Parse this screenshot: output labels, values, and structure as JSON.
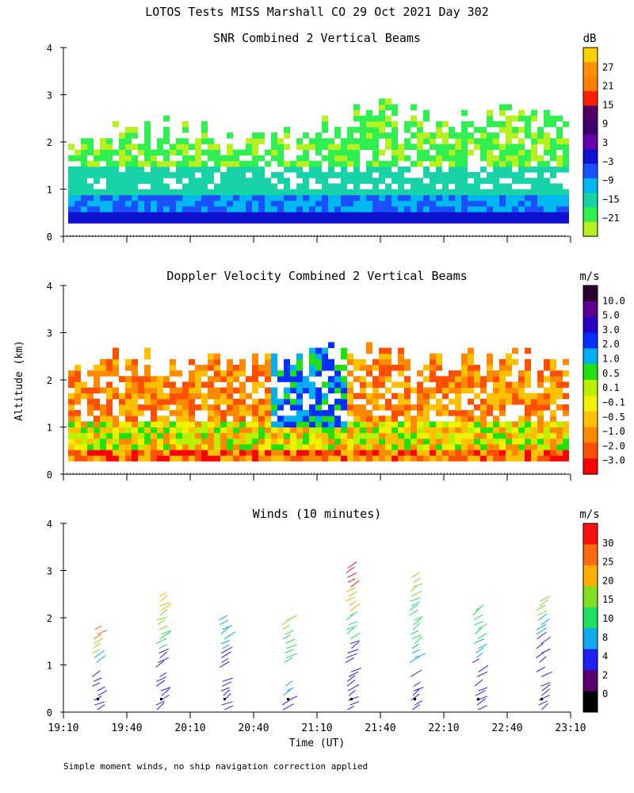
{
  "figure": {
    "title": "LOTOS Tests MISS Marshall CO  29 Oct 2021 Day 302",
    "ylabel": "Altitude (km)",
    "xlabel": "Time (UT)",
    "footnote": "Simple moment winds, no ship navigation correction applied",
    "time_ticks": [
      "19:10",
      "19:40",
      "20:10",
      "20:40",
      "21:10",
      "21:40",
      "22:10",
      "22:40",
      "23:10"
    ]
  },
  "chart_data": [
    {
      "type": "heatmap",
      "title": "SNR Combined 2 Vertical Beams",
      "ylim": [
        0,
        4
      ],
      "y_ticks": [
        "0",
        "1",
        "2",
        "3",
        "4"
      ],
      "colorbar": {
        "unit": "dB",
        "labels": [
          "27",
          "21",
          "15",
          "9",
          "3",
          "−3",
          "−9",
          "−15",
          "−21"
        ],
        "colors": [
          "#ffd000",
          "#ff9000",
          "#ff8000",
          "#ff2000",
          "#550066",
          "#3a0070",
          "#6600aa",
          "#1010d0",
          "#1a50ff",
          "#00b7f0",
          "#18d2a8",
          "#30ef50",
          "#b6f020"
        ]
      },
      "profile": [
        {
          "alt_km": 0.3,
          "db": -3
        },
        {
          "alt_km": 0.5,
          "db": -3
        },
        {
          "alt_km": 0.8,
          "db": -9
        },
        {
          "alt_km": 1.2,
          "db": -12
        },
        {
          "alt_km": 1.8,
          "db": -15
        },
        {
          "alt_km": 2.4,
          "db": -21
        }
      ],
      "echo_top_km": [
        2.2,
        2.5,
        2.5,
        2.4,
        2.3,
        2.2,
        2.3,
        2.5,
        2.9,
        2.8,
        2.6,
        2.7,
        2.8,
        2.8
      ]
    },
    {
      "type": "heatmap",
      "title": "Doppler Velocity Combined 2 Vertical Beams",
      "ylim": [
        0,
        4
      ],
      "y_ticks": [
        "0",
        "1",
        "2",
        "3",
        "4"
      ],
      "colorbar": {
        "unit": "m/s",
        "labels": [
          "10.0",
          "5.0",
          "3.0",
          "2.0",
          "1.0",
          "0.5",
          "0.1",
          "−0.1",
          "−0.5",
          "−1.0",
          "−2.0",
          "−3.0"
        ],
        "colors": [
          "#2a0030",
          "#5a0090",
          "#2a00c8",
          "#0030ff",
          "#00b0f0",
          "#20e010",
          "#b8f000",
          "#f0f000",
          "#ffc000",
          "#ff8a00",
          "#ff5000",
          "#ff0000"
        ]
      },
      "profile": [
        {
          "alt_km": 0.3,
          "ms": -0.5
        },
        {
          "alt_km": 0.8,
          "ms": 0.1
        },
        {
          "alt_km": 1.5,
          "ms": -1.0
        },
        {
          "alt_km": 2.1,
          "ms": -2.0
        }
      ]
    },
    {
      "type": "scatter",
      "title": "Winds (10 minutes)",
      "ylim": [
        0,
        4
      ],
      "y_ticks": [
        "0",
        "1",
        "2",
        "3",
        "4"
      ],
      "colorbar": {
        "unit": "m/s",
        "labels": [
          "30",
          "25",
          "20",
          "15",
          "10",
          "8",
          "4",
          "2",
          "0"
        ],
        "colors": [
          "#ff1010",
          "#ff6a10",
          "#ffb000",
          "#80e020",
          "#20e060",
          "#10a8f0",
          "#2020f0",
          "#5a0070",
          "#000000"
        ]
      },
      "profiles": [
        {
          "time": "19:25",
          "top_km": 1.8,
          "speed_ms": [
            25,
            18,
            8,
            6,
            6,
            4
          ]
        },
        {
          "time": "19:55",
          "top_km": 2.55,
          "speed_ms": [
            20,
            16,
            10,
            6,
            6,
            4
          ]
        },
        {
          "time": "20:25",
          "top_km": 2.0,
          "speed_ms": [
            8,
            8,
            6,
            6,
            4,
            4
          ]
        },
        {
          "time": "20:55",
          "top_km": 2.0,
          "speed_ms": [
            16,
            14,
            12,
            10,
            8,
            6
          ]
        },
        {
          "time": "21:25",
          "top_km": 3.1,
          "speed_ms": [
            30,
            20,
            10,
            6,
            6,
            4
          ]
        },
        {
          "time": "21:55",
          "top_km": 2.9,
          "speed_ms": [
            18,
            12,
            10,
            8,
            6,
            4
          ]
        },
        {
          "time": "22:25",
          "top_km": 2.2,
          "speed_ms": [
            10,
            10,
            8,
            6,
            6,
            4
          ]
        },
        {
          "time": "22:55",
          "top_km": 2.45,
          "speed_ms": [
            18,
            8,
            6,
            6,
            4,
            4
          ]
        }
      ]
    }
  ]
}
